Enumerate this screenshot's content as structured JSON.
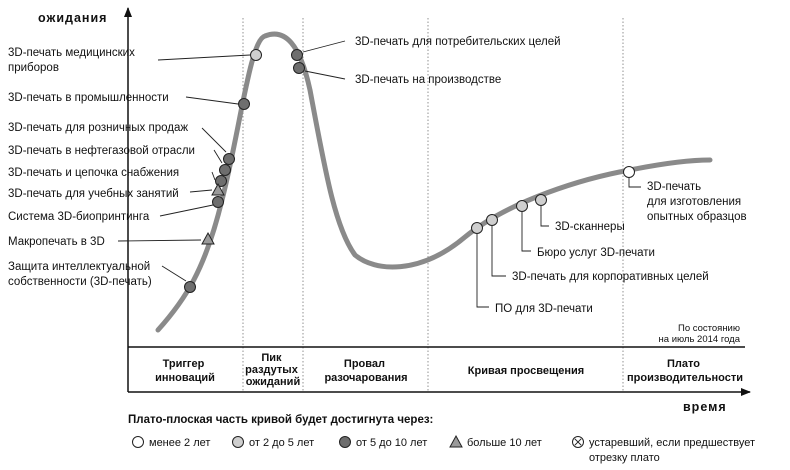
{
  "axis": {
    "y_label": "ожидания",
    "x_label": "время"
  },
  "as_of_note": [
    "По состоянию",
    "на июль 2014 года"
  ],
  "phases": [
    {
      "name": "trigger",
      "lines": [
        "Триггер",
        "инноваций"
      ]
    },
    {
      "name": "peak",
      "lines": [
        "Пик",
        "раздутых",
        "ожиданий"
      ]
    },
    {
      "name": "trough",
      "lines": [
        "Провал",
        "разочарования"
      ]
    },
    {
      "name": "slope",
      "lines": [
        "Кривая просвещения"
      ]
    },
    {
      "name": "plateau",
      "lines": [
        "Плато",
        "производительности"
      ]
    }
  ],
  "technologies": [
    {
      "name": "medical-devices",
      "lines": [
        "3D-печать медицинских",
        "приборов"
      ],
      "marker": "2to5"
    },
    {
      "name": "industry",
      "lines": [
        "3D-печать в промышленности"
      ],
      "marker": "5to10"
    },
    {
      "name": "retail",
      "lines": [
        "3D-печать для розничных продаж"
      ],
      "marker": "5to10"
    },
    {
      "name": "oil-gas",
      "lines": [
        "3D-печать в нефтегазовой отрасли"
      ],
      "marker": "5to10"
    },
    {
      "name": "supply-chain",
      "lines": [
        "3D-печать и цепочка снабжения"
      ],
      "marker": "5to10"
    },
    {
      "name": "education",
      "lines": [
        "3D-печать для учебных занятий"
      ],
      "marker": "over10"
    },
    {
      "name": "bioprinting",
      "lines": [
        "Система 3D-биопринтинга"
      ],
      "marker": "5to10"
    },
    {
      "name": "macroprinting",
      "lines": [
        "Макропечать в 3D"
      ],
      "marker": "over10"
    },
    {
      "name": "ip-protection",
      "lines": [
        "Защита интеллектуальной",
        "собственности (3D-печать)"
      ],
      "marker": "5to10"
    },
    {
      "name": "consumer",
      "lines": [
        "3D-печать для потребительских целей"
      ],
      "marker": "5to10"
    },
    {
      "name": "manufacturing",
      "lines": [
        "3D-печать на производстве"
      ],
      "marker": "5to10"
    },
    {
      "name": "software",
      "lines": [
        "ПО для 3D-печати"
      ],
      "marker": "2to5"
    },
    {
      "name": "enterprise",
      "lines": [
        "3D-печать для корпоративных целей"
      ],
      "marker": "2to5"
    },
    {
      "name": "service-bureau",
      "lines": [
        "Бюро услуг 3D-печати"
      ],
      "marker": "2to5"
    },
    {
      "name": "scanners",
      "lines": [
        "3D-сканнеры"
      ],
      "marker": "2to5"
    },
    {
      "name": "prototyping",
      "lines": [
        "3D-печать",
        "для изготовления",
        "опытных образцов"
      ],
      "marker": "lt2"
    }
  ],
  "legend": {
    "title": "Плато-плоская часть кривой будет достигнута через:",
    "items": [
      {
        "marker": "lt2",
        "lines": [
          "менее 2 лет"
        ]
      },
      {
        "marker": "2to5",
        "lines": [
          "от 2 до 5 лет"
        ]
      },
      {
        "marker": "5to10",
        "lines": [
          "от 5 до 10 лет"
        ]
      },
      {
        "marker": "over10",
        "lines": [
          "больше 10 лет"
        ]
      },
      {
        "marker": "obsolete",
        "lines": [
          "устаревший, если предшествует",
          "отрезку плато"
        ]
      }
    ]
  },
  "colors": {
    "curve": "#8a8a8a",
    "lt2": "#ffffff",
    "2to5": "#cfcfcf",
    "5to10": "#6e6e6e",
    "over10": "#9a9a9a",
    "stroke": "#222222"
  }
}
